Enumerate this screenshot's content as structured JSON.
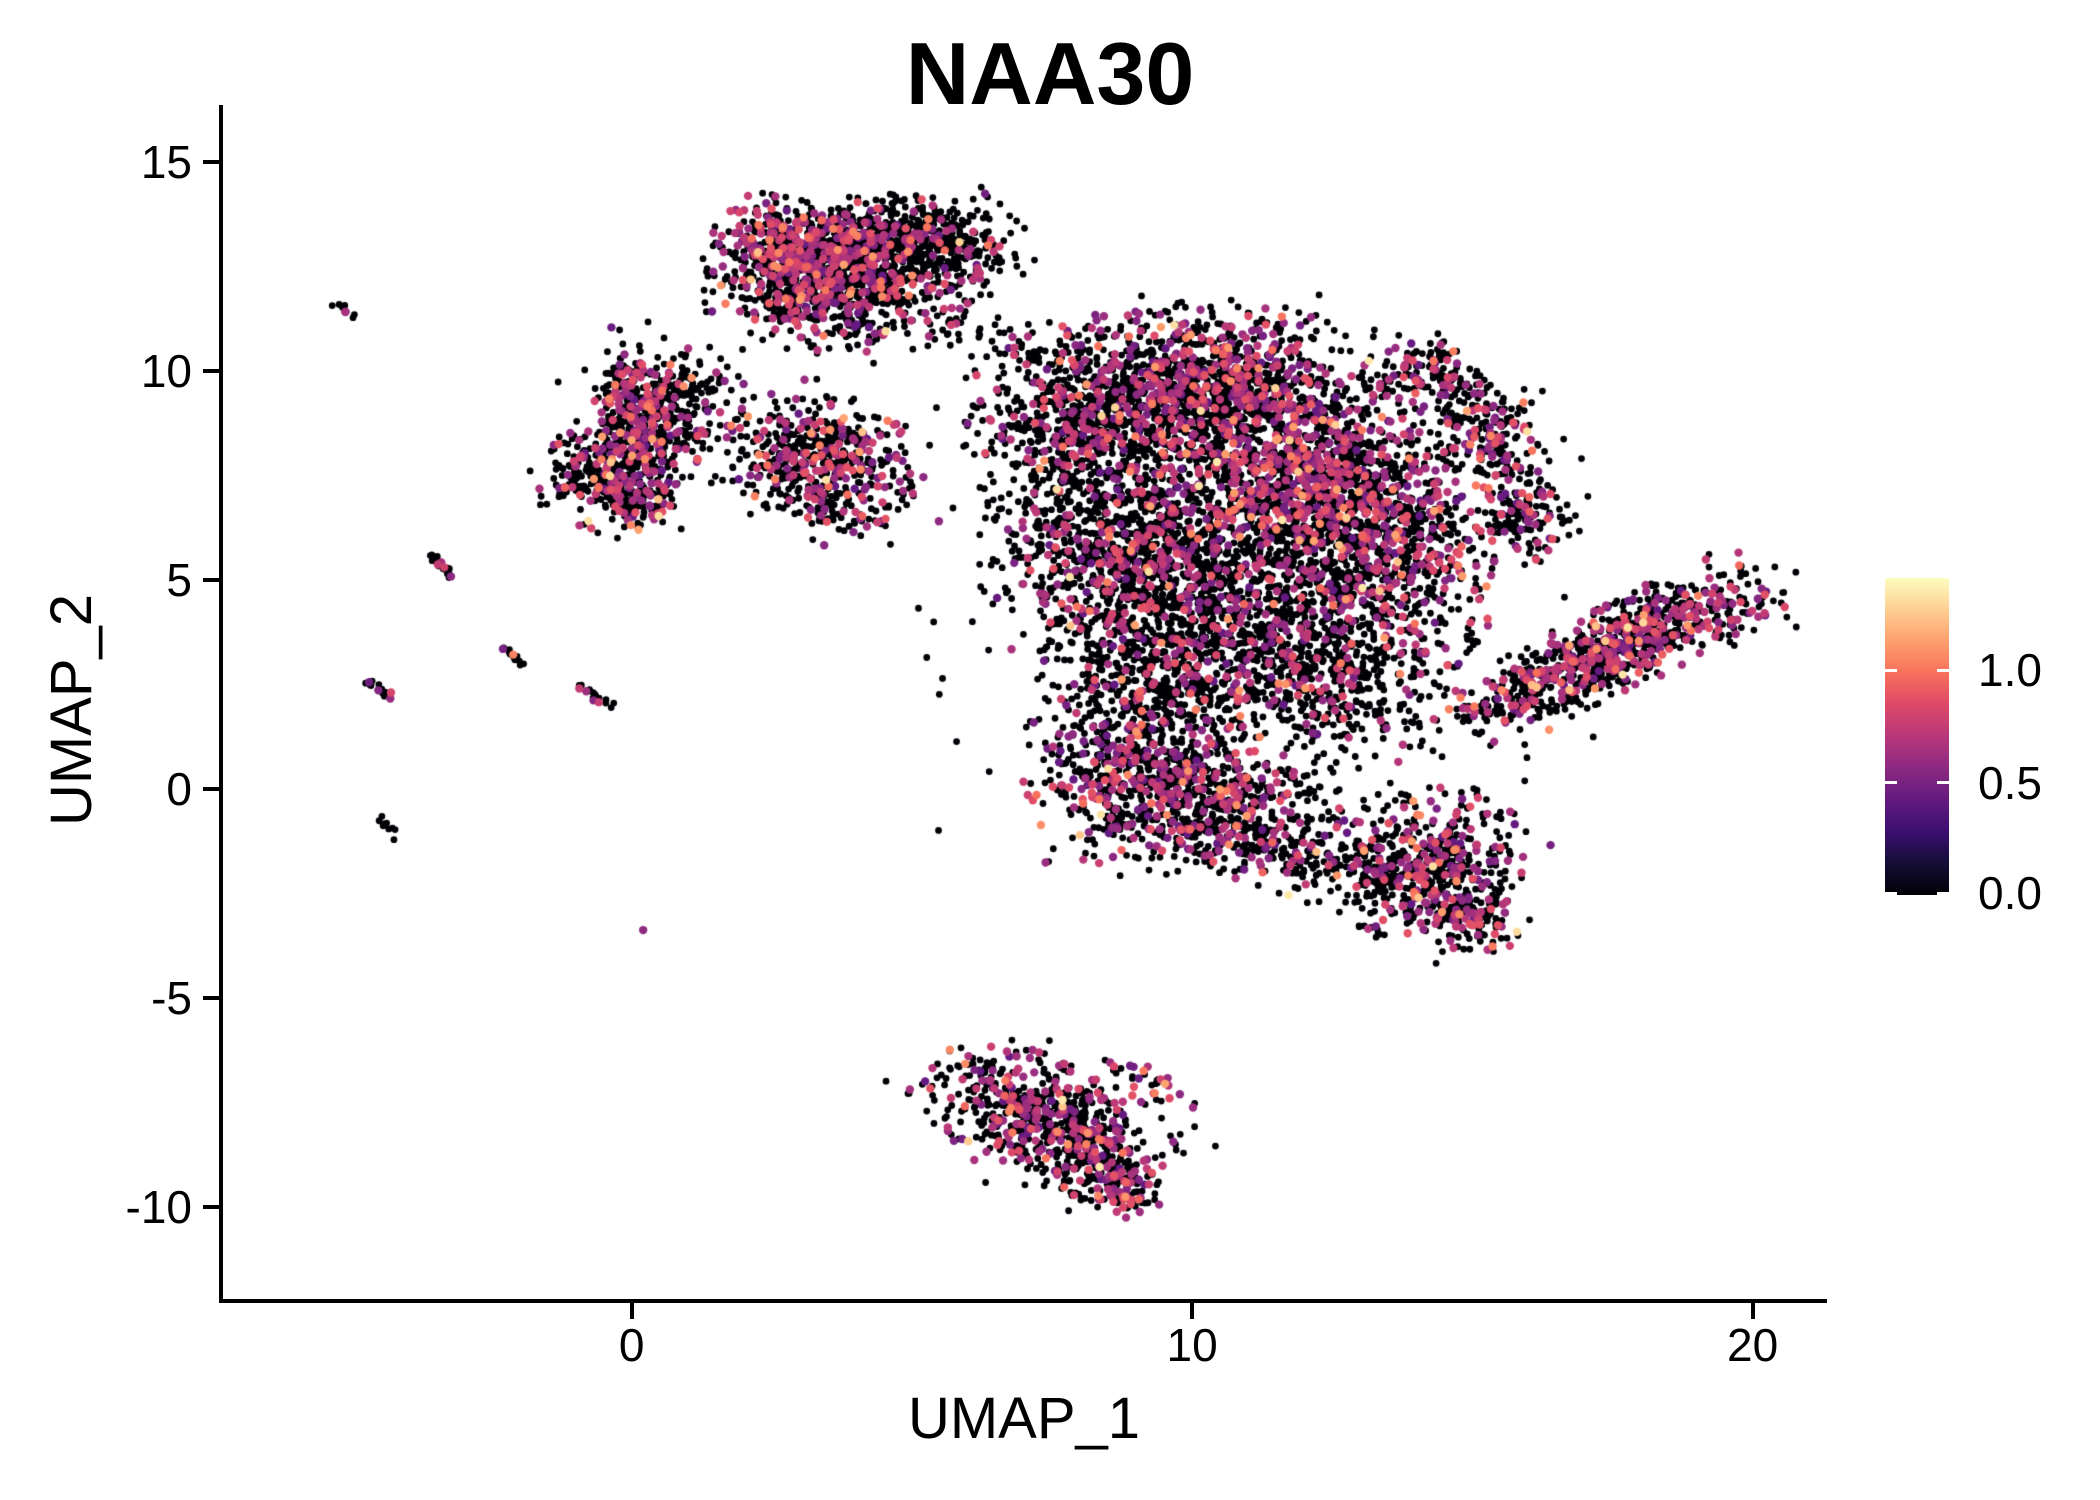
{
  "title": "NAA30",
  "axes": {
    "x": {
      "label": "UMAP_1",
      "tick_labels": [
        "0",
        "10",
        "20"
      ]
    },
    "y": {
      "label": "UMAP_2",
      "tick_labels": [
        "15",
        "10",
        "5",
        "0",
        "-5",
        "-10"
      ]
    }
  },
  "legend": {
    "tick_labels": [
      "1.0",
      "0.5",
      "0.0"
    ]
  },
  "colors": {
    "background": "#ffffff",
    "axis": "#000000",
    "text": "#000000",
    "point_black": "#000004",
    "point_magenta": "#b73779",
    "point_orange": "#fc8961",
    "point_yellow": "#fcfdbf"
  },
  "chart_data": {
    "type": "scatter",
    "title": "NAA30",
    "xlabel": "UMAP_1",
    "ylabel": "UMAP_2",
    "xlim": [
      -7.31,
      21.31
    ],
    "ylim": [
      -12.25,
      16.36
    ],
    "x_ticks": [
      0,
      10,
      20
    ],
    "y_ticks": [
      15,
      10,
      5,
      0,
      -5,
      -10
    ],
    "grid": false,
    "legend_position": "right",
    "legend_ticks": [
      1.0,
      0.5,
      0.0
    ],
    "color_scale_max": 1.41,
    "colormap": "magma",
    "colormap_stops": [
      "#000004",
      "#140e36",
      "#3b0f70",
      "#641a80",
      "#8c2981",
      "#b73779",
      "#de4968",
      "#f7705c",
      "#fe9f6d",
      "#fecf92",
      "#fcfdbf"
    ],
    "points_note": "clusters: [center_x, center_y, sd_x, sd_y, rotation_deg, n_cells, fraction_expressing]; most cells have expression 0 (black), expressing cells ~0.4-1.4 (magenta to orange/yellow)",
    "clusters": [
      [
        2.9,
        12.9,
        0.65,
        0.5,
        -20,
        420,
        0.45
      ],
      [
        4.5,
        13.2,
        0.85,
        0.45,
        5,
        520,
        0.22
      ],
      [
        3.8,
        12.15,
        1.0,
        0.5,
        -10,
        420,
        0.3
      ],
      [
        3.3,
        11.35,
        1.0,
        0.4,
        -15,
        200,
        0.22
      ],
      [
        5.9,
        12.7,
        0.55,
        0.45,
        20,
        160,
        0.12
      ],
      [
        6.4,
        10.8,
        1.3,
        0.35,
        -18,
        70,
        0.12
      ],
      [
        0.9,
        10.3,
        0.8,
        0.5,
        -20,
        30,
        0.2
      ],
      [
        -0.05,
        9.4,
        0.28,
        0.42,
        0,
        130,
        0.38
      ],
      [
        0.85,
        9.45,
        0.5,
        0.3,
        10,
        110,
        0.22
      ],
      [
        0.4,
        8.6,
        0.5,
        0.45,
        -30,
        130,
        0.3
      ],
      [
        0.45,
        9.1,
        0.8,
        0.7,
        0,
        60,
        0.15
      ],
      [
        -0.35,
        7.6,
        0.55,
        0.6,
        -35,
        330,
        0.3
      ],
      [
        0.2,
        6.9,
        0.35,
        0.3,
        0,
        80,
        0.25
      ],
      [
        0.0,
        8.2,
        0.5,
        0.3,
        0,
        50,
        0.2
      ],
      [
        1.6,
        8.6,
        0.9,
        0.6,
        0,
        25,
        0.2
      ],
      [
        3.4,
        7.9,
        0.8,
        0.65,
        -35,
        430,
        0.32
      ],
      [
        3.2,
        7.0,
        0.8,
        0.4,
        -30,
        90,
        0.2
      ],
      [
        8.4,
        8.9,
        1.05,
        0.95,
        0,
        850,
        0.26
      ],
      [
        10.7,
        9.7,
        1.15,
        0.8,
        -10,
        850,
        0.3
      ],
      [
        11.9,
        7.4,
        1.25,
        1.05,
        0,
        1150,
        0.36
      ],
      [
        8.9,
        5.9,
        1.15,
        1.15,
        0,
        750,
        0.22
      ],
      [
        10.4,
        4.5,
        1.35,
        1.05,
        0,
        750,
        0.18
      ],
      [
        13.4,
        5.6,
        0.85,
        1.15,
        0,
        650,
        0.3
      ],
      [
        14.3,
        9.9,
        0.5,
        0.35,
        -40,
        150,
        0.28
      ],
      [
        15.35,
        8.5,
        0.42,
        0.55,
        -15,
        150,
        0.28
      ],
      [
        15.9,
        6.7,
        0.4,
        0.6,
        0,
        150,
        0.28
      ],
      [
        8.9,
        0.4,
        0.85,
        0.95,
        0,
        520,
        0.3
      ],
      [
        10.6,
        -0.5,
        0.9,
        0.75,
        0,
        430,
        0.25
      ],
      [
        12.3,
        -1.7,
        1.1,
        0.45,
        -15,
        230,
        0.2
      ],
      [
        14.2,
        -1.8,
        0.75,
        0.85,
        -30,
        480,
        0.3
      ],
      [
        14.9,
        -3.0,
        0.45,
        0.4,
        -30,
        130,
        0.3
      ],
      [
        9.7,
        2.5,
        0.9,
        0.9,
        0,
        420,
        0.2
      ],
      [
        12.6,
        2.7,
        1.05,
        0.9,
        0,
        480,
        0.22
      ],
      [
        11.2,
        5.5,
        2.6,
        2.8,
        0,
        380,
        0.12
      ],
      [
        17.55,
        3.35,
        1.35,
        0.42,
        33,
        780,
        0.36
      ],
      [
        15.6,
        2.0,
        0.5,
        0.25,
        30,
        60,
        0.3
      ],
      [
        19.9,
        4.3,
        0.5,
        0.35,
        25,
        40,
        0.25
      ],
      [
        7.45,
        -7.9,
        1.05,
        0.55,
        -33,
        600,
        0.3
      ],
      [
        8.55,
        -9.4,
        0.45,
        0.35,
        -30,
        140,
        0.35
      ],
      [
        9.2,
        -7.0,
        0.45,
        0.2,
        -35,
        30,
        0.5
      ],
      [
        7.5,
        -8.0,
        1.3,
        0.8,
        -33,
        80,
        0.2
      ]
    ],
    "dashes_note": "tiny outlier streaks: [x1, y1, x2, y2, n_cells, fraction_expressing, has_orange_point]",
    "dashes": [
      [
        -5.25,
        11.65,
        -5.0,
        11.3,
        9,
        0.12,
        0
      ],
      [
        -3.6,
        5.6,
        -3.2,
        5.1,
        20,
        0.25,
        0
      ],
      [
        -2.25,
        3.35,
        -1.95,
        3.0,
        12,
        0.15,
        1
      ],
      [
        -4.75,
        2.55,
        -4.3,
        2.2,
        14,
        0.3,
        0
      ],
      [
        -0.95,
        2.5,
        -0.4,
        1.95,
        18,
        0.25,
        0
      ],
      [
        -4.5,
        -0.75,
        -4.25,
        -1.1,
        9,
        0.05,
        0
      ],
      [
        0.25,
        -3.4,
        0.25,
        -3.4,
        1,
        1.0,
        0
      ]
    ]
  }
}
